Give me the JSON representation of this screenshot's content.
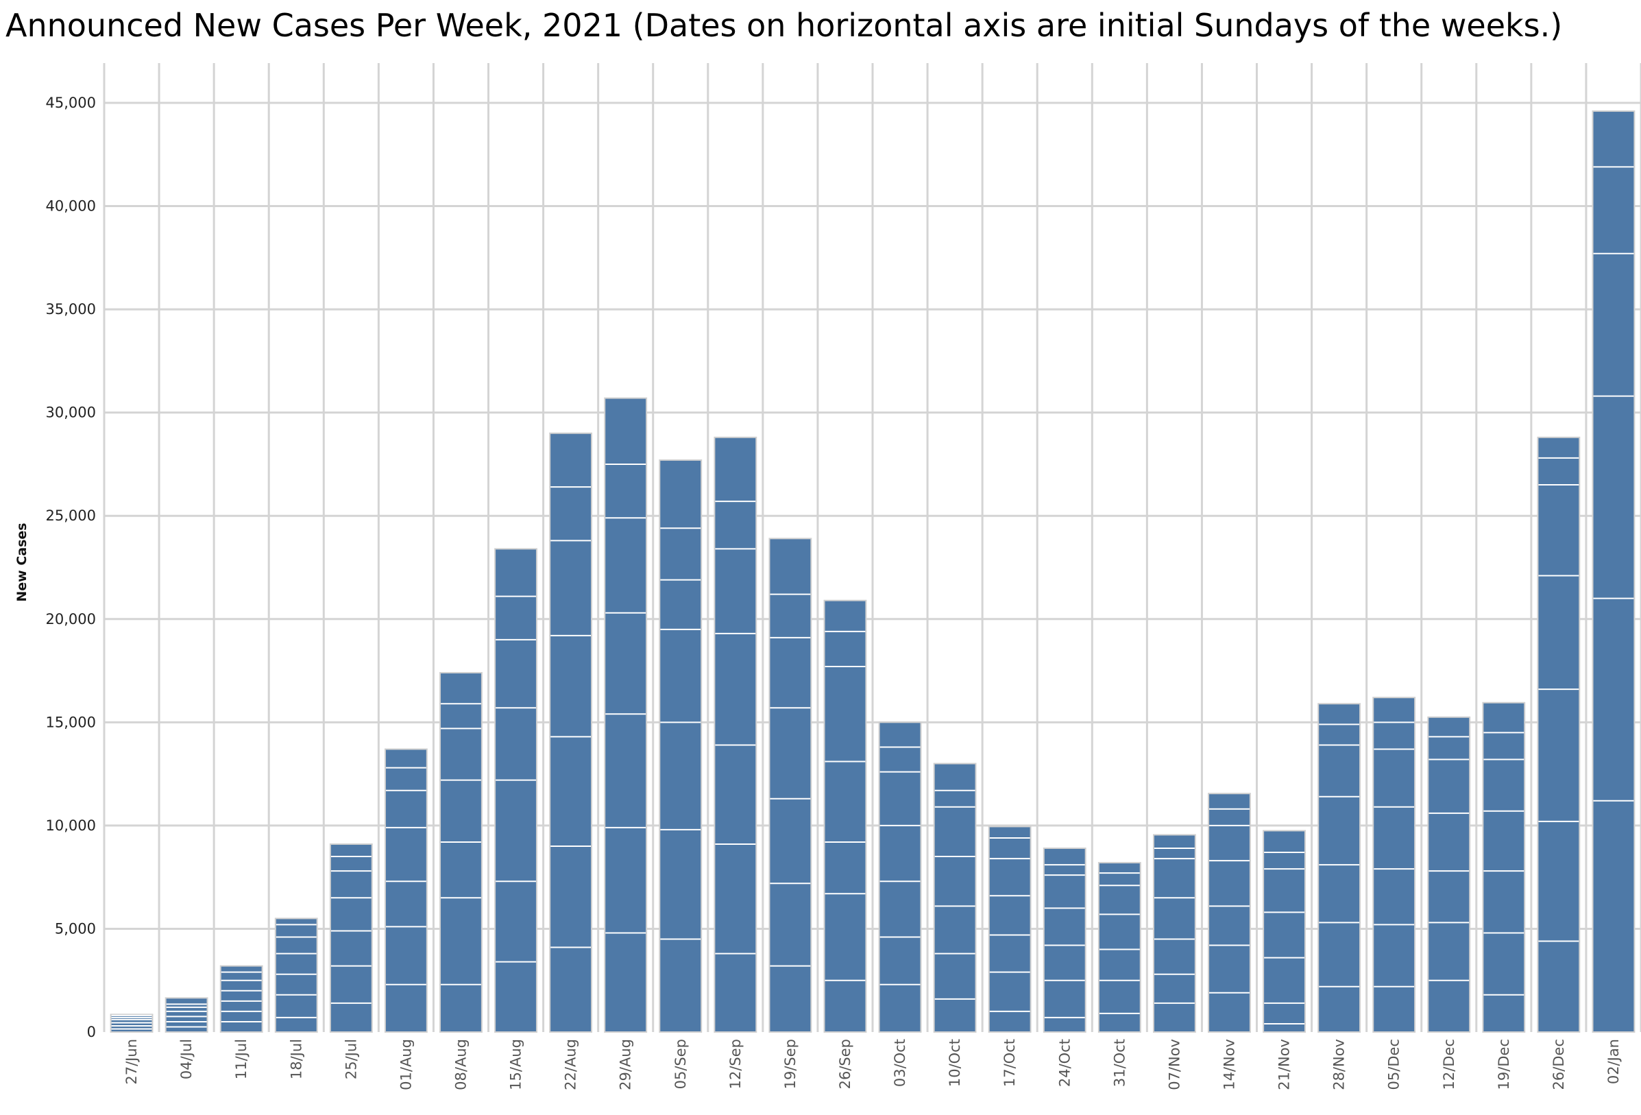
{
  "chart_data": {
    "type": "bar",
    "title": "Announced New Cases Per Week, 2021  (Dates on horizontal axis are initial Sundays of the weeks.)",
    "xlabel": "",
    "ylabel": "New Cases",
    "ylim": [
      0,
      45000
    ],
    "yticks": [
      0,
      5000,
      10000,
      15000,
      20000,
      25000,
      30000,
      35000,
      40000,
      45000
    ],
    "ytick_labels": [
      "0",
      "5,000",
      "10,000",
      "15,000",
      "20,000",
      "25,000",
      "30,000",
      "35,000",
      "40,000",
      "45,000"
    ],
    "grid": true,
    "bar_color": "#4e79a7",
    "segment_line_color": "#ffffff",
    "categories": [
      "27/Jun",
      "04/Jul",
      "11/Jul",
      "18/Jul",
      "25/Jul",
      "01/Aug",
      "08/Aug",
      "15/Aug",
      "22/Aug",
      "29/Aug",
      "05/Sep",
      "12/Sep",
      "19/Sep",
      "26/Sep",
      "03/Oct",
      "10/Oct",
      "17/Oct",
      "24/Oct",
      "31/Oct",
      "07/Nov",
      "14/Nov",
      "21/Nov",
      "28/Nov",
      "05/Dec",
      "12/Dec",
      "19/Dec",
      "26/Dec",
      "02/Jan"
    ],
    "values": [
      850,
      1650,
      3200,
      5500,
      9100,
      13700,
      17400,
      23400,
      29000,
      30700,
      27700,
      28800,
      23900,
      20900,
      15000,
      13000,
      9950,
      8900,
      8200,
      9550,
      11550,
      9750,
      15900,
      16200,
      15250,
      15950,
      28800,
      44600
    ],
    "daily_cumulative": [
      [
        150,
        300,
        450,
        600,
        700,
        800,
        850
      ],
      [
        250,
        500,
        750,
        1000,
        1200,
        1350,
        1650
      ],
      [
        500,
        1000,
        1500,
        2000,
        2500,
        2900,
        3200
      ],
      [
        700,
        1800,
        2800,
        3800,
        4600,
        5200,
        5500
      ],
      [
        1400,
        3200,
        4900,
        6500,
        7800,
        8500,
        9100
      ],
      [
        2300,
        5100,
        7300,
        9900,
        11700,
        12800,
        13700
      ],
      [
        2300,
        6500,
        9200,
        12200,
        14700,
        15900,
        17400
      ],
      [
        3400,
        7300,
        12200,
        15700,
        19000,
        21100,
        23400
      ],
      [
        4100,
        9000,
        14300,
        19200,
        23800,
        26400,
        29000
      ],
      [
        4800,
        9900,
        15400,
        20300,
        24900,
        27500,
        30700
      ],
      [
        4500,
        9800,
        15000,
        19500,
        21900,
        24400,
        27700
      ],
      [
        3800,
        9100,
        13900,
        19300,
        23400,
        25700,
        28800
      ],
      [
        3200,
        7200,
        11300,
        15700,
        19100,
        21200,
        23900
      ],
      [
        2500,
        6700,
        9200,
        13100,
        17700,
        19400,
        20900
      ],
      [
        2300,
        4600,
        7300,
        10000,
        12600,
        13800,
        15000
      ],
      [
        1600,
        3800,
        6100,
        8500,
        10900,
        11700,
        13000
      ],
      [
        1000,
        2900,
        4700,
        6600,
        8400,
        9400,
        9950
      ],
      [
        700,
        2500,
        4200,
        6000,
        7600,
        8100,
        8900
      ],
      [
        900,
        2500,
        4000,
        5700,
        7100,
        7700,
        8200
      ],
      [
        1400,
        2800,
        4500,
        6500,
        8400,
        8900,
        9550
      ],
      [
        1900,
        4200,
        6100,
        8300,
        10000,
        10800,
        11550
      ],
      [
        400,
        1400,
        3600,
        5800,
        7900,
        8700,
        9750
      ],
      [
        2200,
        5300,
        8100,
        11400,
        13900,
        14900,
        15900
      ],
      [
        2200,
        5200,
        7900,
        10900,
        13700,
        15000,
        16200
      ],
      [
        2500,
        5300,
        7800,
        10600,
        13200,
        14300,
        15250
      ],
      [
        1800,
        4800,
        7800,
        10700,
        13200,
        14500,
        15950
      ],
      [
        4400,
        10200,
        16600,
        22100,
        26500,
        27800,
        28800
      ],
      [
        11200,
        21000,
        30800,
        37700,
        41900,
        44600,
        44600
      ]
    ]
  }
}
